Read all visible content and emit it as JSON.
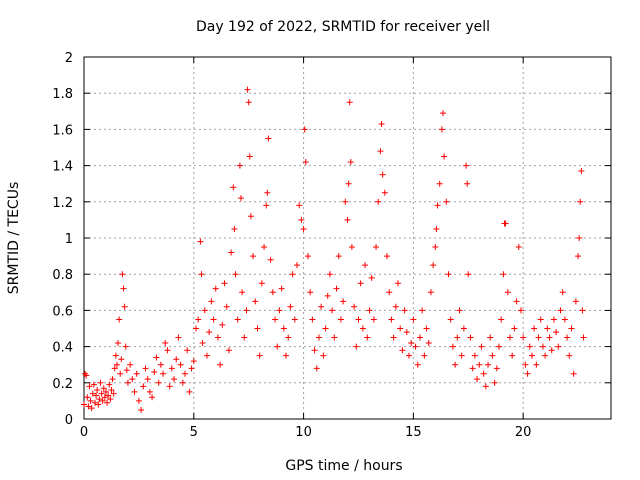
{
  "chart_data": {
    "type": "scatter",
    "title": "Day 192 of 2022, SRMTID for receiver yell",
    "xlabel": "GPS time / hours",
    "ylabel": "SRMTID / TECUs",
    "xlim": [
      0,
      24
    ],
    "ylim": [
      0,
      2
    ],
    "xticks": [
      0,
      5,
      10,
      15,
      20
    ],
    "xtick_labels": [
      "0",
      "5",
      "10",
      "15",
      "20"
    ],
    "yticks": [
      0,
      0.2,
      0.4,
      0.6,
      0.8,
      1,
      1.2,
      1.4,
      1.6,
      1.8,
      2
    ],
    "ytick_labels": [
      "0",
      "0.2",
      "0.4",
      "0.6",
      "0.8",
      "1",
      "1.2",
      "1.4",
      "1.6",
      "1.8",
      "2"
    ],
    "grid": true,
    "marker": "+",
    "color": "#ff0000",
    "series": [
      {
        "name": "SRMTID",
        "points": [
          [
            0.0,
            0.08
          ],
          [
            0.05,
            0.25
          ],
          [
            0.1,
            0.24
          ],
          [
            0.15,
            0.12
          ],
          [
            0.2,
            0.07
          ],
          [
            0.25,
            0.18
          ],
          [
            0.3,
            0.1
          ],
          [
            0.35,
            0.06
          ],
          [
            0.4,
            0.14
          ],
          [
            0.45,
            0.19
          ],
          [
            0.5,
            0.09
          ],
          [
            0.55,
            0.13
          ],
          [
            0.6,
            0.16
          ],
          [
            0.65,
            0.08
          ],
          [
            0.7,
            0.11
          ],
          [
            0.75,
            0.2
          ],
          [
            0.8,
            0.14
          ],
          [
            0.85,
            0.1
          ],
          [
            0.9,
            0.17
          ],
          [
            0.95,
            0.12
          ],
          [
            1.0,
            0.15
          ],
          [
            1.05,
            0.09
          ],
          [
            1.1,
            0.13
          ],
          [
            1.15,
            0.19
          ],
          [
            1.2,
            0.11
          ],
          [
            1.25,
            0.16
          ],
          [
            1.3,
            0.22
          ],
          [
            1.35,
            0.14
          ],
          [
            1.4,
            0.28
          ],
          [
            1.45,
            0.35
          ],
          [
            1.5,
            0.3
          ],
          [
            1.55,
            0.42
          ],
          [
            1.6,
            0.55
          ],
          [
            1.65,
            0.25
          ],
          [
            1.7,
            0.33
          ],
          [
            1.75,
            0.8
          ],
          [
            1.8,
            0.72
          ],
          [
            1.85,
            0.62
          ],
          [
            1.9,
            0.4
          ],
          [
            1.95,
            0.27
          ],
          [
            2.0,
            0.2
          ],
          [
            2.1,
            0.3
          ],
          [
            2.2,
            0.22
          ],
          [
            2.3,
            0.15
          ],
          [
            2.4,
            0.25
          ],
          [
            2.5,
            0.1
          ],
          [
            2.6,
            0.05
          ],
          [
            2.7,
            0.18
          ],
          [
            2.8,
            0.28
          ],
          [
            2.9,
            0.22
          ],
          [
            3.0,
            0.15
          ],
          [
            3.1,
            0.12
          ],
          [
            3.2,
            0.26
          ],
          [
            3.3,
            0.34
          ],
          [
            3.4,
            0.2
          ],
          [
            3.5,
            0.3
          ],
          [
            3.6,
            0.25
          ],
          [
            3.7,
            0.42
          ],
          [
            3.8,
            0.38
          ],
          [
            3.9,
            0.18
          ],
          [
            4.0,
            0.28
          ],
          [
            4.1,
            0.22
          ],
          [
            4.2,
            0.33
          ],
          [
            4.3,
            0.45
          ],
          [
            4.4,
            0.3
          ],
          [
            4.5,
            0.2
          ],
          [
            4.6,
            0.25
          ],
          [
            4.7,
            0.38
          ],
          [
            4.8,
            0.15
          ],
          [
            4.9,
            0.28
          ],
          [
            5.0,
            0.32
          ],
          [
            5.1,
            0.5
          ],
          [
            5.2,
            0.55
          ],
          [
            5.3,
            0.98
          ],
          [
            5.35,
            0.8
          ],
          [
            5.4,
            0.42
          ],
          [
            5.5,
            0.6
          ],
          [
            5.6,
            0.35
          ],
          [
            5.7,
            0.48
          ],
          [
            5.8,
            0.65
          ],
          [
            5.9,
            0.55
          ],
          [
            6.0,
            0.72
          ],
          [
            6.1,
            0.45
          ],
          [
            6.2,
            0.3
          ],
          [
            6.3,
            0.52
          ],
          [
            6.4,
            0.75
          ],
          [
            6.5,
            0.62
          ],
          [
            6.6,
            0.38
          ],
          [
            6.7,
            0.92
          ],
          [
            6.8,
            1.28
          ],
          [
            6.85,
            1.05
          ],
          [
            6.9,
            0.8
          ],
          [
            7.0,
            0.55
          ],
          [
            7.1,
            1.4
          ],
          [
            7.15,
            1.22
          ],
          [
            7.2,
            0.7
          ],
          [
            7.3,
            0.45
          ],
          [
            7.4,
            0.6
          ],
          [
            7.45,
            1.82
          ],
          [
            7.5,
            1.75
          ],
          [
            7.55,
            1.45
          ],
          [
            7.6,
            1.12
          ],
          [
            7.7,
            0.9
          ],
          [
            7.8,
            0.65
          ],
          [
            7.9,
            0.5
          ],
          [
            8.0,
            0.35
          ],
          [
            8.1,
            0.75
          ],
          [
            8.2,
            0.95
          ],
          [
            8.3,
            1.18
          ],
          [
            8.35,
            1.25
          ],
          [
            8.4,
            1.55
          ],
          [
            8.5,
            0.88
          ],
          [
            8.6,
            0.7
          ],
          [
            8.7,
            0.55
          ],
          [
            8.8,
            0.4
          ],
          [
            8.9,
            0.6
          ],
          [
            9.0,
            0.72
          ],
          [
            9.1,
            0.5
          ],
          [
            9.2,
            0.35
          ],
          [
            9.3,
            0.45
          ],
          [
            9.4,
            0.62
          ],
          [
            9.5,
            0.8
          ],
          [
            9.6,
            0.55
          ],
          [
            9.7,
            0.85
          ],
          [
            9.8,
            1.18
          ],
          [
            9.9,
            1.1
          ],
          [
            10.0,
            1.05
          ],
          [
            10.05,
            1.6
          ],
          [
            10.1,
            1.42
          ],
          [
            10.2,
            0.9
          ],
          [
            10.3,
            0.7
          ],
          [
            10.4,
            0.55
          ],
          [
            10.5,
            0.38
          ],
          [
            10.6,
            0.28
          ],
          [
            10.7,
            0.45
          ],
          [
            10.8,
            0.62
          ],
          [
            10.9,
            0.35
          ],
          [
            11.0,
            0.5
          ],
          [
            11.1,
            0.68
          ],
          [
            11.2,
            0.8
          ],
          [
            11.3,
            0.6
          ],
          [
            11.4,
            0.45
          ],
          [
            11.5,
            0.72
          ],
          [
            11.6,
            0.9
          ],
          [
            11.7,
            0.55
          ],
          [
            11.8,
            0.65
          ],
          [
            11.9,
            1.2
          ],
          [
            12.0,
            1.1
          ],
          [
            12.05,
            1.3
          ],
          [
            12.1,
            1.75
          ],
          [
            12.15,
            1.42
          ],
          [
            12.2,
            0.95
          ],
          [
            12.3,
            0.62
          ],
          [
            12.4,
            0.4
          ],
          [
            12.5,
            0.55
          ],
          [
            12.6,
            0.75
          ],
          [
            12.7,
            0.5
          ],
          [
            12.8,
            0.85
          ],
          [
            12.9,
            0.45
          ],
          [
            13.0,
            0.6
          ],
          [
            13.1,
            0.78
          ],
          [
            13.2,
            0.55
          ],
          [
            13.3,
            0.95
          ],
          [
            13.4,
            1.2
          ],
          [
            13.5,
            1.48
          ],
          [
            13.55,
            1.63
          ],
          [
            13.6,
            1.35
          ],
          [
            13.7,
            1.25
          ],
          [
            13.8,
            0.9
          ],
          [
            13.9,
            0.7
          ],
          [
            14.0,
            0.55
          ],
          [
            14.1,
            0.45
          ],
          [
            14.2,
            0.62
          ],
          [
            14.3,
            0.75
          ],
          [
            14.4,
            0.5
          ],
          [
            14.5,
            0.38
          ],
          [
            14.6,
            0.6
          ],
          [
            14.7,
            0.48
          ],
          [
            14.8,
            0.35
          ],
          [
            14.9,
            0.42
          ],
          [
            15.0,
            0.55
          ],
          [
            15.1,
            0.4
          ],
          [
            15.2,
            0.3
          ],
          [
            15.3,
            0.45
          ],
          [
            15.4,
            0.6
          ],
          [
            15.5,
            0.35
          ],
          [
            15.6,
            0.5
          ],
          [
            15.7,
            0.42
          ],
          [
            15.8,
            0.7
          ],
          [
            15.9,
            0.85
          ],
          [
            16.0,
            0.95
          ],
          [
            16.05,
            1.05
          ],
          [
            16.1,
            1.18
          ],
          [
            16.2,
            1.3
          ],
          [
            16.3,
            1.6
          ],
          [
            16.35,
            1.69
          ],
          [
            16.4,
            1.45
          ],
          [
            16.5,
            1.2
          ],
          [
            16.6,
            0.8
          ],
          [
            16.7,
            0.55
          ],
          [
            16.8,
            0.4
          ],
          [
            16.9,
            0.3
          ],
          [
            17.0,
            0.45
          ],
          [
            17.1,
            0.6
          ],
          [
            17.2,
            0.35
          ],
          [
            17.3,
            0.5
          ],
          [
            17.4,
            1.4
          ],
          [
            17.45,
            1.3
          ],
          [
            17.5,
            0.8
          ],
          [
            17.6,
            0.45
          ],
          [
            17.7,
            0.28
          ],
          [
            17.8,
            0.35
          ],
          [
            17.9,
            0.22
          ],
          [
            18.0,
            0.3
          ],
          [
            18.1,
            0.4
          ],
          [
            18.2,
            0.25
          ],
          [
            18.3,
            0.18
          ],
          [
            18.4,
            0.3
          ],
          [
            18.5,
            0.45
          ],
          [
            18.6,
            0.35
          ],
          [
            18.7,
            0.2
          ],
          [
            18.8,
            0.28
          ],
          [
            18.9,
            0.4
          ],
          [
            19.0,
            0.55
          ],
          [
            19.1,
            0.8
          ],
          [
            19.15,
            1.08
          ],
          [
            19.2,
            1.08
          ],
          [
            19.3,
            0.7
          ],
          [
            19.4,
            0.45
          ],
          [
            19.5,
            0.35
          ],
          [
            19.6,
            0.5
          ],
          [
            19.7,
            0.65
          ],
          [
            19.8,
            0.95
          ],
          [
            19.9,
            0.6
          ],
          [
            20.0,
            0.45
          ],
          [
            20.1,
            0.3
          ],
          [
            20.2,
            0.25
          ],
          [
            20.3,
            0.4
          ],
          [
            20.4,
            0.35
          ],
          [
            20.5,
            0.5
          ],
          [
            20.6,
            0.3
          ],
          [
            20.7,
            0.45
          ],
          [
            20.8,
            0.55
          ],
          [
            20.9,
            0.4
          ],
          [
            21.0,
            0.35
          ],
          [
            21.1,
            0.5
          ],
          [
            21.2,
            0.45
          ],
          [
            21.3,
            0.38
          ],
          [
            21.4,
            0.55
          ],
          [
            21.5,
            0.48
          ],
          [
            21.6,
            0.4
          ],
          [
            21.7,
            0.6
          ],
          [
            21.8,
            0.7
          ],
          [
            21.9,
            0.55
          ],
          [
            22.0,
            0.45
          ],
          [
            22.1,
            0.35
          ],
          [
            22.2,
            0.5
          ],
          [
            22.3,
            0.25
          ],
          [
            22.4,
            0.65
          ],
          [
            22.5,
            0.9
          ],
          [
            22.55,
            1.0
          ],
          [
            22.6,
            1.2
          ],
          [
            22.65,
            1.37
          ],
          [
            22.7,
            0.6
          ],
          [
            22.75,
            0.45
          ]
        ]
      }
    ]
  }
}
